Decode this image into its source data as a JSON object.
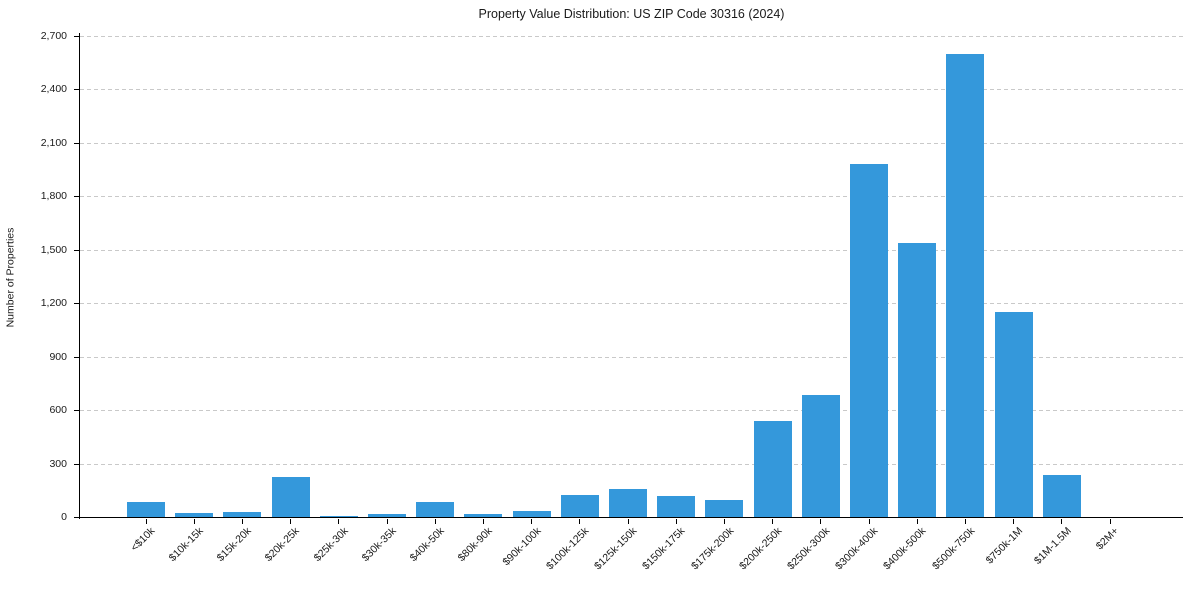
{
  "chart_data": {
    "type": "bar",
    "title": "Property Value Distribution: US ZIP Code 30316 (2024)",
    "xlabel": "",
    "ylabel": "Number of Properties",
    "categories": [
      "<$10k",
      "$10k-15k",
      "$15k-20k",
      "$20k-25k",
      "$25k-30k",
      "$30k-35k",
      "$40k-50k",
      "$80k-90k",
      "$90k-100k",
      "$100k-125k",
      "$125k-150k",
      "$150k-175k",
      "$175k-200k",
      "$200k-250k",
      "$250k-300k",
      "$300k-400k",
      "$400k-500k",
      "$500k-750k",
      "$750k-1M",
      "$1M-1.5M",
      "$2M+"
    ],
    "values": [
      85,
      25,
      30,
      225,
      10,
      20,
      85,
      20,
      35,
      125,
      160,
      120,
      100,
      540,
      685,
      1980,
      1540,
      2600,
      1150,
      240,
      5
    ],
    "yticks": [
      0,
      300,
      600,
      900,
      1200,
      1500,
      1800,
      2100,
      2400,
      2700
    ],
    "ytick_labels": [
      "0",
      "300",
      "600",
      "900",
      "1,200",
      "1,500",
      "1,800",
      "2,100",
      "2,400",
      "2,700"
    ],
    "ylim": [
      0,
      2715
    ],
    "bar_color": "#3498db",
    "grid": {
      "axis": "y",
      "style": "dashed",
      "color": "#c9c9c9"
    },
    "axis_color": "#000000",
    "legend_position": "none"
  }
}
